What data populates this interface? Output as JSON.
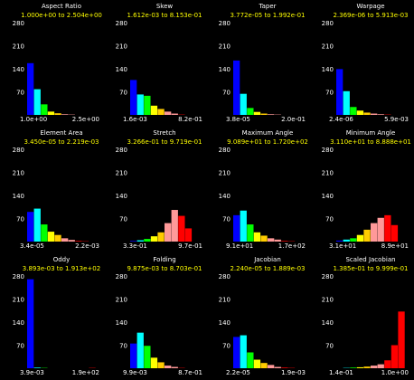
{
  "chart_data": [
    {
      "type": "bar",
      "title": "Aspect Ratio",
      "range": "1.000e+00 to 2.504e+00",
      "x_min_label": "1.0e+00",
      "x_max_label": "2.5e+00",
      "ylim": [
        0,
        280
      ],
      "yticks": [
        "280",
        "210",
        "140",
        "70",
        "0"
      ],
      "values": [
        157,
        78,
        32,
        10,
        5,
        2,
        1,
        0,
        0,
        0
      ]
    },
    {
      "type": "bar",
      "title": "Skew",
      "range": "1.612e-03 to 8.153e-01",
      "x_min_label": "1.6e-03",
      "x_max_label": "8.2e-01",
      "ylim": [
        0,
        280
      ],
      "yticks": [
        "280",
        "210",
        "140",
        "70",
        "0"
      ],
      "values": [
        106,
        62,
        58,
        28,
        18,
        10,
        4,
        1,
        0,
        0
      ]
    },
    {
      "type": "bar",
      "title": "Taper",
      "range": "3.772e-05 to 1.992e-01",
      "x_min_label": "3.8e-05",
      "x_max_label": "2.0e-01",
      "ylim": [
        0,
        280
      ],
      "yticks": [
        "280",
        "210",
        "140",
        "70",
        "0"
      ],
      "values": [
        165,
        64,
        21,
        9,
        4,
        2,
        1,
        0,
        0,
        0
      ]
    },
    {
      "type": "bar",
      "title": "Warpage",
      "range": "2.369e-06 to 5.913e-03",
      "x_min_label": "2.4e-06",
      "x_max_label": "5.9e-03",
      "ylim": [
        0,
        280
      ],
      "yticks": [
        "280",
        "210",
        "140",
        "70",
        "0"
      ],
      "values": [
        139,
        72,
        24,
        13,
        7,
        4,
        2,
        1,
        0,
        0
      ]
    },
    {
      "type": "bar",
      "title": "Element Area",
      "range": "3.450e-05 to 2.219e-03",
      "x_min_label": "3.4e-05",
      "x_max_label": "2.2e-03",
      "ylim": [
        0,
        280
      ],
      "yticks": [
        "280",
        "210",
        "140",
        "70",
        "0"
      ],
      "values": [
        90,
        100,
        52,
        30,
        20,
        10,
        5,
        2,
        1,
        0
      ]
    },
    {
      "type": "bar",
      "title": "Stretch",
      "range": "3.266e-01 to 9.719e-01",
      "x_min_label": "3.3e-01",
      "x_max_label": "9.7e-01",
      "ylim": [
        0,
        280
      ],
      "yticks": [
        "280",
        "210",
        "140",
        "70",
        "0"
      ],
      "values": [
        2,
        4,
        8,
        16,
        28,
        56,
        96,
        78,
        40,
        0
      ]
    },
    {
      "type": "bar",
      "title": "Maximum Angle",
      "range": "9.089e+01 to 1.720e+02",
      "x_min_label": "9.1e+01",
      "x_max_label": "1.7e+02",
      "ylim": [
        0,
        280
      ],
      "yticks": [
        "280",
        "210",
        "140",
        "70",
        "0"
      ],
      "values": [
        80,
        94,
        52,
        28,
        18,
        10,
        6,
        2,
        1,
        0
      ]
    },
    {
      "type": "bar",
      "title": "Minimum Angle",
      "range": "3.110e+01 to 8.888e+01",
      "x_min_label": "3.1e+01",
      "x_max_label": "8.9e+01",
      "ylim": [
        0,
        280
      ],
      "yticks": [
        "280",
        "210",
        "140",
        "70",
        "0"
      ],
      "values": [
        3,
        6,
        10,
        20,
        36,
        56,
        72,
        80,
        50,
        0
      ]
    },
    {
      "type": "bar",
      "title": "Oddy",
      "range": "3.893e-03 to 1.913e+02",
      "x_min_label": "3.9e-03",
      "x_max_label": "1.9e+02",
      "ylim": [
        0,
        280
      ],
      "yticks": [
        "280",
        "210",
        "140",
        "70",
        "0"
      ],
      "values": [
        270,
        2,
        1,
        0,
        0,
        0,
        0,
        0,
        0,
        1
      ]
    },
    {
      "type": "bar",
      "title": "Folding",
      "range": "9.875e-03 to 8.703e-01",
      "x_min_label": "9.9e-03",
      "x_max_label": "8.7e-01",
      "ylim": [
        0,
        280
      ],
      "yticks": [
        "280",
        "210",
        "140",
        "70",
        "0"
      ],
      "values": [
        75,
        108,
        68,
        32,
        18,
        8,
        4,
        1,
        0,
        0
      ]
    },
    {
      "type": "bar",
      "title": "Jacobian",
      "range": "2.240e-05 to 1.889e-03",
      "x_min_label": "2.2e-05",
      "x_max_label": "1.9e-03",
      "ylim": [
        0,
        280
      ],
      "yticks": [
        "280",
        "210",
        "140",
        "70",
        "0"
      ],
      "values": [
        95,
        100,
        48,
        26,
        16,
        10,
        4,
        2,
        1,
        0
      ]
    },
    {
      "type": "bar",
      "title": "Scaled Jacobian",
      "range": "1.385e-01 to 9.999e-01",
      "x_min_label": "1.4e-01",
      "x_max_label": "1.0e+00",
      "ylim": [
        0,
        280
      ],
      "yticks": [
        "280",
        "210",
        "140",
        "70",
        "0"
      ],
      "values": [
        0,
        1,
        2,
        3,
        5,
        8,
        12,
        24,
        70,
        172
      ]
    }
  ],
  "bar_colors": [
    "#0000ff",
    "#0066ff",
    "#00ffff",
    "#00ff66",
    "#00ff00",
    "#66ff00",
    "#ffff00",
    "#ffcc00",
    "#ff9999",
    "#ff0000"
  ]
}
